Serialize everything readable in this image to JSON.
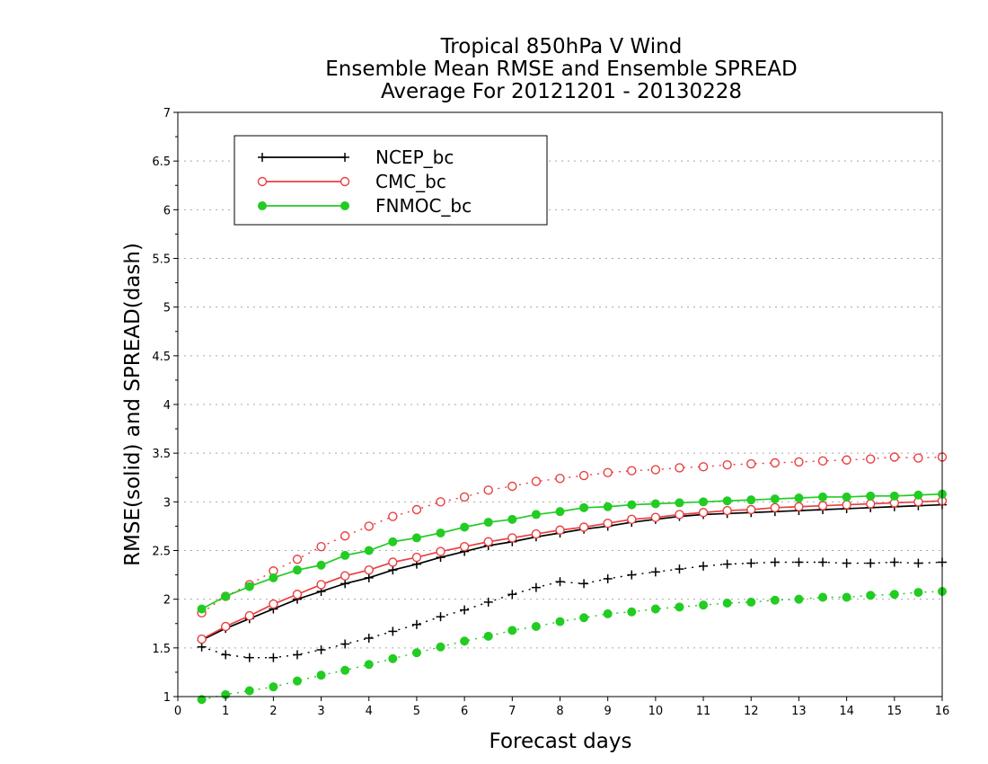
{
  "chart_data": {
    "type": "line",
    "title": [
      "Tropical 850hPa V Wind",
      "Ensemble Mean RMSE and Ensemble SPREAD",
      "Average For 20121201 - 20130228"
    ],
    "xlabel": "Forecast days",
    "ylabel": "RMSE(solid) and SPREAD(dash)",
    "xlim": [
      0,
      16
    ],
    "ylim": [
      1,
      7
    ],
    "xticks": [
      "0",
      "1",
      "2",
      "3",
      "4",
      "5",
      "6",
      "7",
      "8",
      "9",
      "10",
      "11",
      "12",
      "13",
      "14",
      "15",
      "16"
    ],
    "yticks": [
      "1",
      "1.5",
      "2",
      "2.5",
      "3",
      "3.5",
      "4",
      "4.5",
      "5",
      "5.5",
      "6",
      "6.5",
      "7"
    ],
    "grid": true,
    "legend_position": "top-left",
    "x": [
      0.5,
      1,
      1.5,
      2,
      2.5,
      3,
      3.5,
      4,
      4.5,
      5,
      5.5,
      6,
      6.5,
      7,
      7.5,
      8,
      8.5,
      9,
      9.5,
      10,
      10.5,
      11,
      11.5,
      12,
      12.5,
      13,
      13.5,
      14,
      14.5,
      15,
      15.5,
      16
    ],
    "series": [
      {
        "name": "NCEP_bc",
        "color": "#000000",
        "marker": "plus",
        "rmse": [
          1.58,
          1.7,
          1.8,
          1.9,
          2.0,
          2.08,
          2.16,
          2.22,
          2.3,
          2.36,
          2.43,
          2.49,
          2.55,
          2.59,
          2.64,
          2.68,
          2.72,
          2.75,
          2.79,
          2.82,
          2.85,
          2.87,
          2.88,
          2.89,
          2.9,
          2.91,
          2.92,
          2.93,
          2.94,
          2.95,
          2.96,
          2.97
        ],
        "spread": [
          1.51,
          1.43,
          1.4,
          1.4,
          1.43,
          1.48,
          1.54,
          1.6,
          1.67,
          1.74,
          1.82,
          1.89,
          1.97,
          2.05,
          2.12,
          2.18,
          2.16,
          2.21,
          2.25,
          2.28,
          2.31,
          2.34,
          2.36,
          2.37,
          2.38,
          2.38,
          2.38,
          2.37,
          2.37,
          2.38,
          2.37,
          2.38
        ]
      },
      {
        "name": "CMC_bc",
        "color": "#e84040",
        "marker": "open-circle",
        "rmse": [
          1.59,
          1.72,
          1.83,
          1.95,
          2.05,
          2.15,
          2.24,
          2.3,
          2.38,
          2.43,
          2.49,
          2.54,
          2.59,
          2.63,
          2.67,
          2.71,
          2.74,
          2.78,
          2.82,
          2.84,
          2.87,
          2.89,
          2.91,
          2.92,
          2.94,
          2.95,
          2.96,
          2.97,
          2.98,
          2.99,
          3.0,
          3.01
        ],
        "spread": [
          1.86,
          2.03,
          2.15,
          2.29,
          2.41,
          2.54,
          2.65,
          2.75,
          2.85,
          2.92,
          3.0,
          3.05,
          3.12,
          3.16,
          3.21,
          3.24,
          3.27,
          3.3,
          3.32,
          3.33,
          3.35,
          3.36,
          3.38,
          3.39,
          3.4,
          3.41,
          3.42,
          3.43,
          3.44,
          3.46,
          3.45,
          3.46
        ]
      },
      {
        "name": "FNMOC_bc",
        "color": "#22cc22",
        "marker": "filled-circle",
        "rmse": [
          1.9,
          2.03,
          2.13,
          2.22,
          2.3,
          2.35,
          2.45,
          2.5,
          2.59,
          2.63,
          2.68,
          2.74,
          2.79,
          2.82,
          2.87,
          2.9,
          2.94,
          2.95,
          2.97,
          2.98,
          2.99,
          3.0,
          3.01,
          3.02,
          3.03,
          3.04,
          3.05,
          3.05,
          3.06,
          3.06,
          3.07,
          3.08
        ],
        "spread": [
          0.97,
          1.02,
          1.06,
          1.1,
          1.16,
          1.22,
          1.27,
          1.33,
          1.39,
          1.45,
          1.51,
          1.57,
          1.62,
          1.68,
          1.72,
          1.77,
          1.81,
          1.85,
          1.87,
          1.9,
          1.92,
          1.94,
          1.96,
          1.97,
          1.99,
          2.0,
          2.02,
          2.02,
          2.04,
          2.05,
          2.07,
          2.08
        ]
      }
    ]
  }
}
